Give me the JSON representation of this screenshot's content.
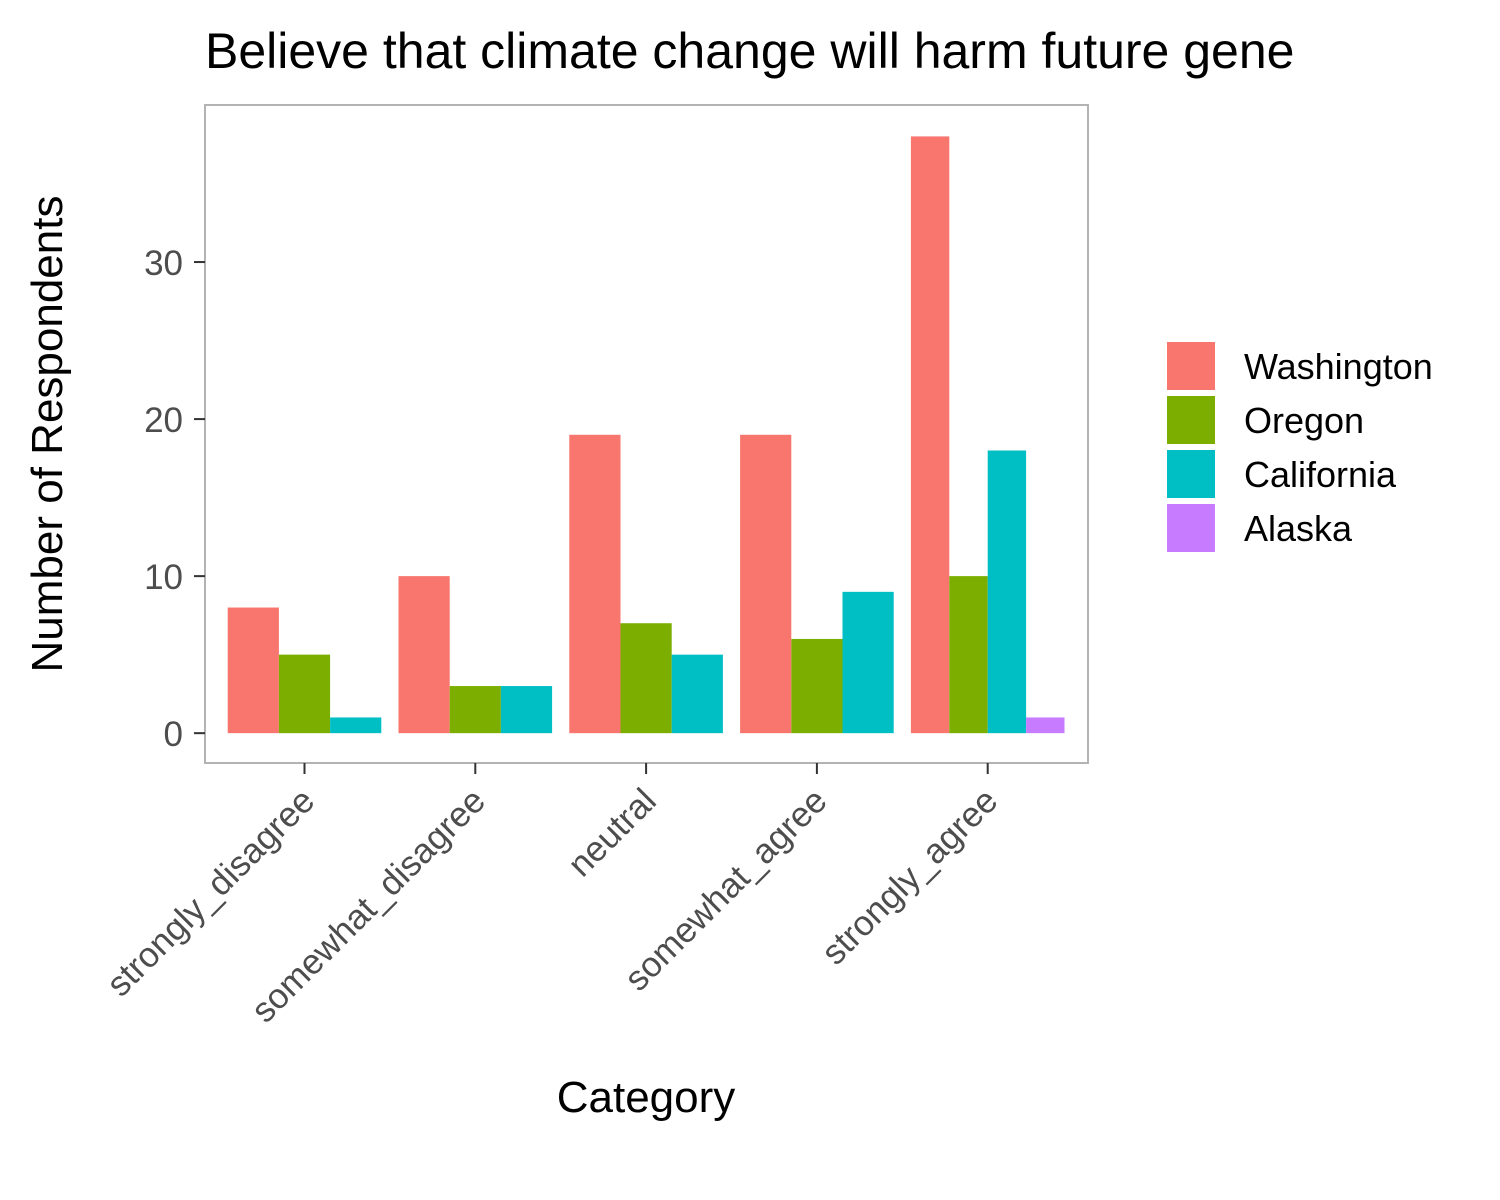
{
  "chart_data": {
    "type": "bar",
    "title": "Believe that climate change will harm future gene",
    "xlabel": "Category",
    "ylabel": "Number of Respondents",
    "categories": [
      "strongly_disagree",
      "somewhat_disagree",
      "neutral",
      "somewhat_agree",
      "strongly_agree"
    ],
    "series": [
      {
        "name": "Washington",
        "color": "#F8766D",
        "values": [
          8,
          10,
          19,
          19,
          38
        ]
      },
      {
        "name": "Oregon",
        "color": "#7CAE00",
        "values": [
          5,
          3,
          7,
          6,
          10
        ]
      },
      {
        "name": "California",
        "color": "#00BFC4",
        "values": [
          1,
          3,
          5,
          9,
          18
        ]
      },
      {
        "name": "Alaska",
        "color": "#C77CFF",
        "values": [
          null,
          null,
          null,
          null,
          1
        ]
      }
    ],
    "yticks": [
      0,
      10,
      20,
      30
    ],
    "ylim": [
      -1.9,
      40
    ],
    "grid": false,
    "legend_position": "right"
  }
}
